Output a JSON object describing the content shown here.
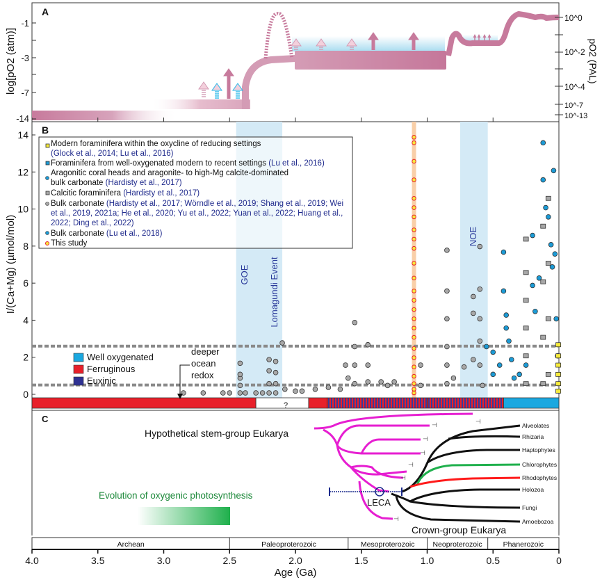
{
  "chart_data": [
    {
      "panel": "A",
      "type": "area",
      "ylabel_left": "log[pO2 (atm)]",
      "ylabel_right": "pO2 (PAL)",
      "left_ticks": [
        "-1",
        "-3",
        "-7",
        "-14"
      ],
      "right_ticks": [
        "10^0",
        "10^-2",
        "10^-4",
        "10^-7",
        "10^-13"
      ],
      "note": "Schematic atmospheric oxygen evolution vs age (Ga)",
      "segments": [
        {
          "from_ga": 4.0,
          "to_ga": 2.7,
          "log_po2": -14
        },
        {
          "from_ga": 3.0,
          "to_ga": 2.3,
          "log_po2": -7.8
        },
        {
          "from_ga": 2.3,
          "to_ga": 2.0,
          "log_po2": -3.2
        },
        {
          "from_ga": 2.0,
          "to_ga": 0.8,
          "log_po2": -3.6
        },
        {
          "from_ga": 0.8,
          "to_ga": 0.55,
          "log_po2": -2.3
        },
        {
          "from_ga": 0.45,
          "to_ga": 0.0,
          "log_po2": -0.3
        }
      ]
    },
    {
      "panel": "B",
      "type": "scatter",
      "title": "",
      "xlabel": "Age (Ga)",
      "ylabel": "I/(Ca+Mg) (µmol/mol)",
      "xlim": [
        4.0,
        0
      ],
      "ylim": [
        0,
        14
      ],
      "yticks": [
        "0",
        "2",
        "4",
        "6",
        "8",
        "10",
        "12",
        "14"
      ],
      "threshold_lines": [
        0.5,
        2.6
      ],
      "shaded_bands": [
        {
          "label": "GOE",
          "from_ga": 2.45,
          "to_ga": 2.3
        },
        {
          "label": "Lomagundi Event",
          "from_ga": 2.3,
          "to_ga": 2.1
        },
        {
          "label": "NOE",
          "from_ga": 0.75,
          "to_ga": 0.54
        }
      ],
      "this_study_age_ga": 1.1,
      "legend": [
        {
          "marker": "yellow-square",
          "text": "Modern foraminifera within the oxycline of reducing settings",
          "ref": "(Glock et al., 2014; Lu et al., 2016)"
        },
        {
          "marker": "blue-square",
          "text": "Foraminifera from well-oxygenated modern to recent settings",
          "ref": "(Lu et al., 2016)"
        },
        {
          "marker": "blue-circle",
          "text": "Aragonitic coral heads and aragonite- to high-Mg calcite-dominated",
          "text2": "bulk carbonate",
          "ref": "(Hardisty et al., 2017)"
        },
        {
          "marker": "gray-square",
          "text": "Calcitic foraminifera",
          "ref": "(Hardisty et al., 2017)"
        },
        {
          "marker": "gray-circle",
          "text": "Bulk carbonate",
          "ref1": "(Hardisty et al., 2017; Wörndle et al., 2019; Shang et al., 2019;  Wei",
          "ref2": "et al., 2019, 2021a; He et al., 2020; Yu et al., 2022; Yuan et al., 2022; Huang et al.,",
          "ref3": "2022; Ding et al., 2022)"
        },
        {
          "marker": "blue-circle",
          "text": "Bulk carbonate",
          "ref": "(Lu et al., 2018)"
        },
        {
          "marker": "red-yellow-circle",
          "text": "This study"
        }
      ],
      "redox_legend": [
        {
          "label": "Well oxygenated",
          "color": "#1aa8e0"
        },
        {
          "label": "Ferruginous",
          "color": "#e8202a"
        },
        {
          "label": "Euxinic",
          "color": "#2e3192"
        }
      ],
      "redox_annotation": "deeper\nocean\nredox",
      "unknown_mark": "?",
      "redox_bar": [
        {
          "from_ga": 4.0,
          "to_ga": 2.3,
          "state": "Ferruginous"
        },
        {
          "from_ga": 2.3,
          "to_ga": 1.9,
          "state": "Unknown"
        },
        {
          "from_ga": 1.9,
          "to_ga": 1.76,
          "state": "Ferruginous"
        },
        {
          "from_ga": 1.76,
          "to_ga": 0.42,
          "state": "Ferruginous/Euxinic"
        },
        {
          "from_ga": 0.42,
          "to_ga": 0.0,
          "state": "Well oxygenated"
        }
      ],
      "series": [
        {
          "name": "Bulk carbonate (gray)",
          "points": [
            [
              2.85,
              0
            ],
            [
              2.7,
              0
            ],
            [
              2.55,
              0
            ],
            [
              2.5,
              0
            ],
            [
              2.42,
              0
            ],
            [
              2.42,
              0.4
            ],
            [
              2.42,
              0.8
            ],
            [
              2.42,
              1.0
            ],
            [
              2.42,
              1.6
            ],
            [
              2.38,
              0
            ],
            [
              2.3,
              0
            ],
            [
              2.25,
              0
            ],
            [
              2.2,
              0
            ],
            [
              2.2,
              0.5
            ],
            [
              2.2,
              1.2
            ],
            [
              2.2,
              1.8
            ],
            [
              2.15,
              1.7
            ],
            [
              2.15,
              1.1
            ],
            [
              2.15,
              0.5
            ],
            [
              2.15,
              0
            ],
            [
              2.1,
              2.7
            ],
            [
              2.08,
              0.2
            ],
            [
              2.0,
              0.1
            ],
            [
              1.95,
              0.1
            ],
            [
              1.85,
              0.2
            ],
            [
              1.75,
              0.3
            ],
            [
              1.66,
              0.2
            ],
            [
              1.62,
              1.5
            ],
            [
              1.6,
              0.8
            ],
            [
              1.55,
              3.8
            ],
            [
              1.55,
              2.5
            ],
            [
              1.55,
              1.5
            ],
            [
              1.55,
              0.5
            ],
            [
              1.45,
              2.6
            ],
            [
              1.45,
              1.5
            ],
            [
              1.45,
              0.6
            ],
            [
              1.35,
              0.6
            ],
            [
              1.3,
              0.4
            ],
            [
              1.25,
              0.6
            ],
            [
              1.05,
              1.5
            ],
            [
              1.05,
              0.4
            ],
            [
              0.85,
              7.7
            ],
            [
              0.85,
              5.5
            ],
            [
              0.85,
              4.0
            ],
            [
              0.85,
              2.5
            ],
            [
              0.85,
              1.5
            ],
            [
              0.85,
              0.5
            ],
            [
              0.8,
              0.8
            ],
            [
              0.72,
              1.4
            ],
            [
              0.65,
              5.2
            ],
            [
              0.65,
              4.3
            ],
            [
              0.65,
              1.8
            ],
            [
              0.6,
              7.9
            ],
            [
              0.6,
              5.6
            ],
            [
              0.6,
              4.0
            ],
            [
              0.6,
              2.8
            ],
            [
              0.6,
              1.5
            ],
            [
              0.58,
              0.4
            ]
          ]
        },
        {
          "name": "This study",
          "points": [
            [
              1.1,
              13.8
            ],
            [
              1.1,
              13.5
            ],
            [
              1.1,
              12.5
            ],
            [
              1.1,
              11.5
            ],
            [
              1.1,
              10.5
            ],
            [
              1.1,
              10.0
            ],
            [
              1.1,
              9.5
            ],
            [
              1.1,
              8.8
            ],
            [
              1.1,
              8.3
            ],
            [
              1.1,
              7.8
            ],
            [
              1.1,
              7.0
            ],
            [
              1.1,
              6.2
            ],
            [
              1.1,
              5.5
            ],
            [
              1.1,
              5.0
            ],
            [
              1.1,
              4.5
            ],
            [
              1.1,
              4.0
            ],
            [
              1.1,
              3.5
            ],
            [
              1.1,
              3.0
            ],
            [
              1.1,
              2.4
            ],
            [
              1.1,
              1.9
            ],
            [
              1.1,
              1.4
            ],
            [
              1.1,
              0.9
            ],
            [
              1.1,
              0.5
            ],
            [
              1.1,
              0.2
            ],
            [
              1.1,
              0.0
            ]
          ]
        },
        {
          "name": "Bulk carbonate (blue)",
          "points": [
            [
              0.55,
              2.5
            ],
            [
              0.5,
              2.2
            ],
            [
              0.5,
              1.0
            ],
            [
              0.45,
              1.5
            ],
            [
              0.42,
              7.6
            ],
            [
              0.42,
              5.5
            ],
            [
              0.4,
              4.2
            ],
            [
              0.4,
              3.5
            ],
            [
              0.38,
              2.8
            ],
            [
              0.36,
              1.8
            ],
            [
              0.34,
              0.8
            ],
            [
              0.3,
              1.0
            ],
            [
              0.25,
              1.5
            ],
            [
              0.2,
              8.5
            ],
            [
              0.2,
              5.8
            ],
            [
              0.18,
              4.4
            ],
            [
              0.15,
              6.2
            ],
            [
              0.12,
              11.5
            ],
            [
              0.12,
              13.5
            ],
            [
              0.1,
              10.0
            ],
            [
              0.08,
              9.5
            ],
            [
              0.06,
              8.0
            ],
            [
              0.05,
              6.8
            ],
            [
              0.04,
              12.0
            ],
            [
              0.03,
              7.5
            ],
            [
              0.02,
              4.0
            ],
            [
              0.01,
              2.0
            ]
          ]
        },
        {
          "name": "Calcitic foraminifera",
          "points": [
            [
              0.25,
              8.3
            ],
            [
              0.25,
              6.5
            ],
            [
              0.25,
              5.0
            ],
            [
              0.25,
              3.5
            ],
            [
              0.25,
              2.0
            ],
            [
              0.25,
              0.5
            ],
            [
              0.12,
              9.0
            ],
            [
              0.12,
              6.0
            ],
            [
              0.12,
              3.0
            ],
            [
              0.12,
              0.5
            ],
            [
              0.08,
              10.5
            ],
            [
              0.08,
              7.0
            ],
            [
              0.08,
              4.0
            ],
            [
              0.08,
              1.0
            ]
          ]
        },
        {
          "name": "Modern foraminifera (reducing)",
          "points": [
            [
              0.005,
              2.6
            ],
            [
              0.005,
              2.0
            ],
            [
              0.005,
              1.5
            ],
            [
              0.005,
              1.0
            ],
            [
              0.005,
              0.5
            ],
            [
              0.005,
              0.1
            ]
          ]
        }
      ]
    },
    {
      "panel": "C",
      "type": "diagram",
      "labels": {
        "stem": "Hypothetical stem-group Eukarya",
        "crown": "Crown-group Eukarya",
        "leca": "LECA",
        "photosynthesis": "Evolution of oxygenic photosynthesis"
      },
      "clades": [
        "Alveolates",
        "Rhizaria",
        "Haptophytes",
        "Chlorophytes",
        "Rhodophytes",
        "Holozoa",
        "Fungi",
        "Amoebozoa"
      ],
      "leca_age_ga": 1.35,
      "leca_error_ga": [
        1.75,
        1.2
      ],
      "photosynthesis_range_ga": [
        3.2,
        2.5
      ]
    }
  ],
  "panels": {
    "a": "A",
    "b": "B",
    "c": "C"
  },
  "xaxis": {
    "label": "Age (Ga)",
    "ticks": [
      "4.0",
      "3.5",
      "3.0",
      "2.5",
      "2.0",
      "1.5",
      "1.0",
      "0.5",
      "0"
    ],
    "tick_values": [
      4.0,
      3.5,
      3.0,
      2.5,
      2.0,
      1.5,
      1.0,
      0.5,
      0
    ]
  },
  "eons": [
    {
      "name": "Archean",
      "from": 4.0,
      "to": 2.5
    },
    {
      "name": "Paleoproterozoic",
      "from": 2.5,
      "to": 1.6
    },
    {
      "name": "Mesoproterozoic",
      "from": 1.6,
      "to": 1.0
    },
    {
      "name": "Neoproterozoic",
      "from": 1.0,
      "to": 0.54
    },
    {
      "name": "Phanerozoic",
      "from": 0.54,
      "to": 0
    }
  ],
  "colors": {
    "oxygen": "#c77a9c",
    "oxygen_light": "#dcaabf",
    "shade": "#d4eaf6",
    "study_band": "#f9cfa8",
    "magenta": "#e61ed1",
    "green": "#1fb04c",
    "red": "#ff1a1a",
    "navy": "#1a2a8c",
    "gray_pt": "#a8a8a8",
    "blue_pt": "#1c9bd6",
    "ref": "#1f2a8c"
  }
}
